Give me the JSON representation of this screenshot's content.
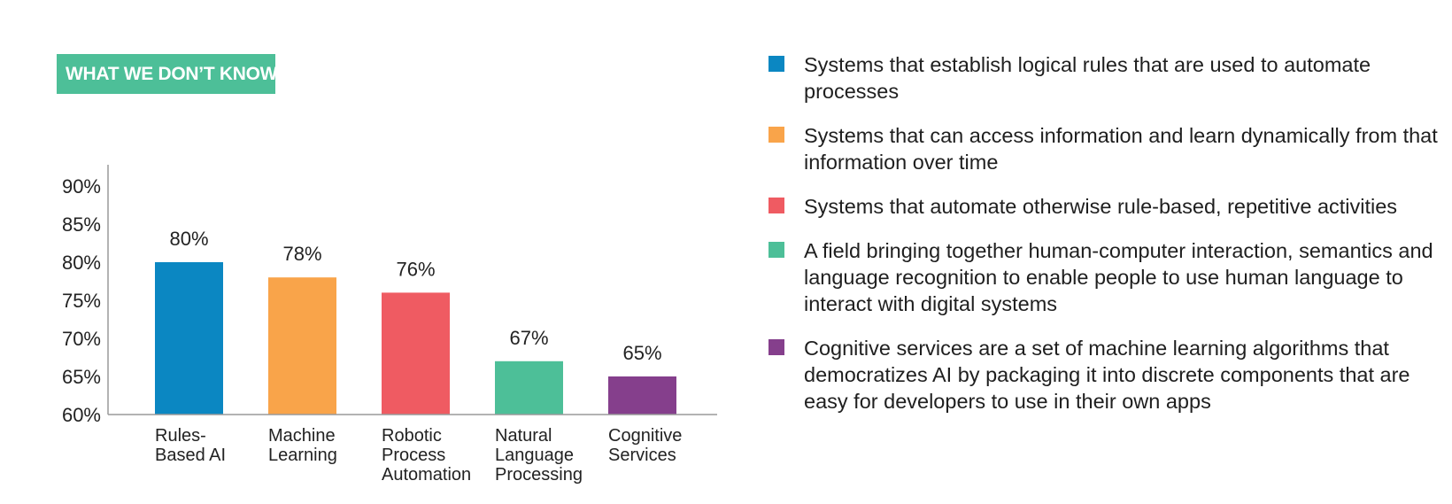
{
  "header": {
    "badge_text": "WHAT WE DON’T KNOW",
    "badge_color": "#4dbf98"
  },
  "chart_data": {
    "type": "bar",
    "title": "",
    "xlabel": "",
    "ylabel": "",
    "ylim": [
      60,
      90
    ],
    "yticks": [
      60,
      65,
      70,
      75,
      80,
      85,
      90
    ],
    "ytick_labels": [
      "60%",
      "65%",
      "70%",
      "75%",
      "80%",
      "85%",
      "90%"
    ],
    "grid": false,
    "categories": [
      [
        "Rules-",
        "Based AI"
      ],
      [
        "Machine",
        "Learning"
      ],
      [
        "Robotic",
        "Process",
        "Automation"
      ],
      [
        "Natural",
        "Language",
        "Processing"
      ],
      [
        "Cognitive",
        "Services"
      ]
    ],
    "values": [
      80,
      78,
      76,
      67,
      65
    ],
    "value_labels": [
      "80%",
      "78%",
      "76%",
      "67%",
      "65%"
    ],
    "colors": [
      "#0b87c2",
      "#f9a44a",
      "#ef5b62",
      "#4dbf98",
      "#853f8c"
    ],
    "legend_placement": "right"
  },
  "legend": [
    {
      "color": "#0b87c2",
      "text": "Systems that establish logical rules that are used to automate processes"
    },
    {
      "color": "#f9a44a",
      "text": "Systems that can access information and learn dynamically from that information over time"
    },
    {
      "color": "#ef5b62",
      "text": "Systems that automate otherwise rule-based, repetitive activities"
    },
    {
      "color": "#4dbf98",
      "text": "A field bringing together human-computer interaction, semantics and language recognition to enable people to use human language to interact with digital systems"
    },
    {
      "color": "#853f8c",
      "text": "Cognitive services are a set of machine learning algorithms that democratizes AI by packaging it into discrete components that are easy for developers to use in their own apps"
    }
  ]
}
